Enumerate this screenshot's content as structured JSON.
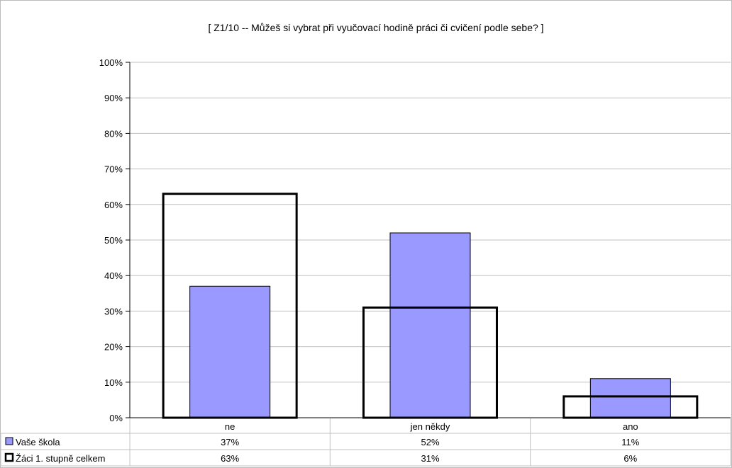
{
  "chart_data": {
    "type": "bar",
    "title": "[ Z1/10 -- Můžeš si vybrat při vyučovací hodině práci či cvičení podle sebe? ]",
    "categories": [
      "ne",
      "jen někdy",
      "ano"
    ],
    "series": [
      {
        "name": "Vaše škola",
        "values": [
          37,
          52,
          11
        ],
        "labels": [
          "37%",
          "52%",
          "11%"
        ],
        "style": "filled",
        "color": "#9999ff"
      },
      {
        "name": "Žáci 1. stupně celkem",
        "values": [
          63,
          31,
          6
        ],
        "labels": [
          "63%",
          "31%",
          "6%"
        ],
        "style": "outline",
        "color": "#000000"
      }
    ],
    "ylim": [
      0,
      100
    ],
    "yticks": [
      "0%",
      "10%",
      "20%",
      "30%",
      "40%",
      "50%",
      "60%",
      "70%",
      "80%",
      "90%",
      "100%"
    ],
    "grid": true,
    "legend": "data-table-below",
    "xlabel": "",
    "ylabel": ""
  }
}
